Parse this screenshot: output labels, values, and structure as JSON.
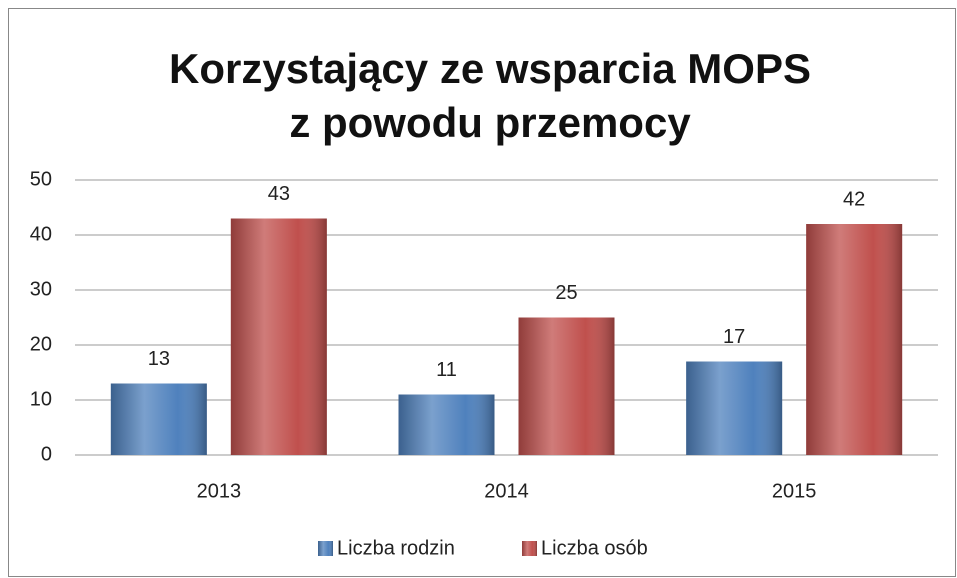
{
  "chart_data": {
    "type": "bar",
    "title": [
      "Korzystający ze wsparcia MOPS",
      "z powodu przemocy"
    ],
    "categories": [
      "2013",
      "2014",
      "2015"
    ],
    "series": [
      {
        "name": "Liczba rodzin",
        "color": "#4f81bd",
        "values": [
          13,
          11,
          17
        ]
      },
      {
        "name": "Liczba osób",
        "color": "#c0504d",
        "values": [
          43,
          25,
          42
        ]
      }
    ],
    "ylim": [
      0,
      50
    ],
    "yticks": [
      0,
      10,
      20,
      30,
      40,
      50
    ],
    "grid": true,
    "legend": "bottom"
  }
}
